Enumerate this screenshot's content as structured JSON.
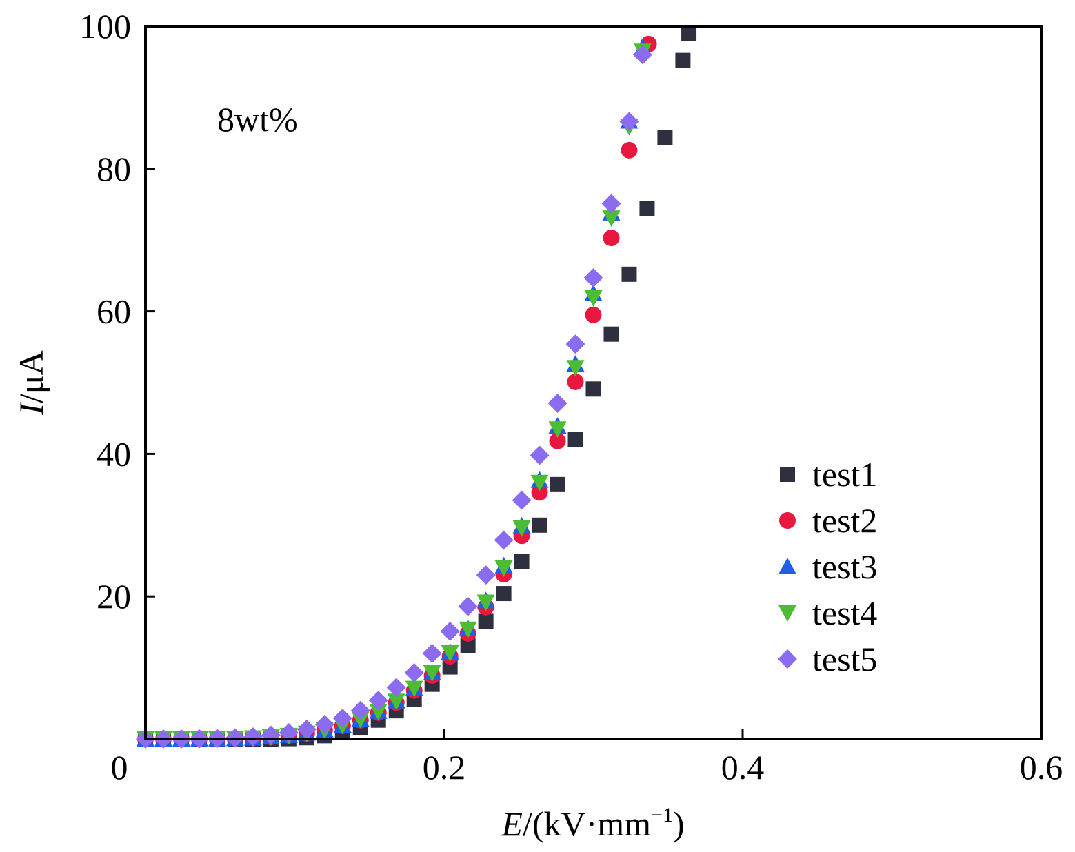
{
  "chart_data": {
    "type": "scatter",
    "title": "",
    "annotation": "8wt%",
    "xlabel": {
      "italic": "E",
      "rest": "/(kV·mm",
      "sup": "−1",
      "close": ")"
    },
    "ylabel": {
      "italic": "I",
      "rest": "/μA"
    },
    "xlim": [
      0,
      0.6
    ],
    "ylim": [
      0,
      100
    ],
    "xticks": [
      0,
      0.2,
      0.4,
      0.6
    ],
    "xtick_labels": [
      "0",
      "0.2",
      "0.4",
      "0.6"
    ],
    "yticks": [
      20,
      40,
      60,
      80,
      100
    ],
    "ytick_labels": [
      "20",
      "40",
      "60",
      "80",
      "100"
    ],
    "grid": false,
    "legend_position": "right-middle",
    "series": [
      {
        "name": "test1",
        "marker": "square",
        "color": "#2e2f3f",
        "x": [
          0,
          0.012,
          0.024,
          0.036,
          0.048,
          0.06,
          0.072,
          0.084,
          0.096,
          0.108,
          0.12,
          0.132,
          0.144,
          0.156,
          0.168,
          0.18,
          0.192,
          0.204,
          0.216,
          0.228,
          0.24,
          0.252,
          0.264,
          0.276,
          0.288,
          0.3,
          0.312,
          0.324,
          0.336,
          0.348,
          0.36,
          0.364
        ],
        "y": [
          0,
          0,
          0,
          0,
          0,
          0,
          0,
          0,
          0.04,
          0.17,
          0.45,
          0.93,
          1.64,
          2.64,
          3.95,
          5.61,
          7.67,
          10.1,
          13.1,
          16.5,
          20.4,
          24.9,
          30.0,
          35.7,
          42.0,
          49.1,
          56.8,
          65.2,
          74.4,
          84.4,
          95.2,
          99.0
        ]
      },
      {
        "name": "test2",
        "marker": "circle",
        "color": "#e8173f",
        "x": [
          0,
          0.012,
          0.024,
          0.036,
          0.048,
          0.06,
          0.072,
          0.084,
          0.096,
          0.108,
          0.12,
          0.132,
          0.144,
          0.156,
          0.168,
          0.18,
          0.192,
          0.204,
          0.216,
          0.228,
          0.24,
          0.252,
          0.264,
          0.276,
          0.288,
          0.3,
          0.312,
          0.324,
          0.337
        ],
        "y": [
          0,
          0,
          0,
          0.01,
          0.03,
          0.06,
          0.14,
          0.27,
          0.48,
          0.78,
          1.22,
          1.84,
          2.63,
          3.7,
          5.1,
          6.8,
          8.9,
          11.6,
          14.8,
          18.5,
          23.1,
          28.5,
          34.6,
          41.8,
          50.1,
          59.5,
          70.3,
          82.6,
          97.5
        ]
      },
      {
        "name": "test3",
        "marker": "triangle-up",
        "color": "#1f5ee8",
        "x": [
          0,
          0.012,
          0.024,
          0.036,
          0.048,
          0.06,
          0.072,
          0.084,
          0.096,
          0.108,
          0.12,
          0.132,
          0.144,
          0.156,
          0.168,
          0.18,
          0.192,
          0.204,
          0.216,
          0.228,
          0.24,
          0.252,
          0.264,
          0.276,
          0.288,
          0.3,
          0.312,
          0.324,
          0.333
        ],
        "y": [
          0,
          0,
          0,
          0.01,
          0.03,
          0.06,
          0.15,
          0.28,
          0.5,
          0.82,
          1.28,
          1.93,
          2.76,
          3.89,
          5.36,
          7.1,
          9.3,
          12.2,
          15.5,
          19.4,
          24.3,
          29.9,
          36.3,
          43.9,
          52.6,
          62.5,
          73.8,
          86.7,
          97.0
        ]
      },
      {
        "name": "test4",
        "marker": "triangle-down",
        "color": "#4cbd32",
        "x": [
          0,
          0.012,
          0.024,
          0.036,
          0.048,
          0.06,
          0.072,
          0.084,
          0.096,
          0.108,
          0.12,
          0.132,
          0.144,
          0.156,
          0.168,
          0.18,
          0.192,
          0.204,
          0.216,
          0.228,
          0.24,
          0.252,
          0.264,
          0.276,
          0.288,
          0.3,
          0.312,
          0.324,
          0.333
        ],
        "y": [
          0,
          0,
          0,
          0.01,
          0.03,
          0.06,
          0.15,
          0.28,
          0.5,
          0.81,
          1.27,
          1.91,
          2.74,
          3.85,
          5.3,
          7.1,
          9.3,
          12.1,
          15.4,
          19.2,
          24.0,
          29.6,
          36.0,
          43.5,
          52.1,
          61.9,
          73.1,
          85.9,
          96.5
        ]
      },
      {
        "name": "test5",
        "marker": "diamond",
        "color": "#8b6cf0",
        "x": [
          0,
          0.012,
          0.024,
          0.036,
          0.048,
          0.06,
          0.072,
          0.084,
          0.096,
          0.108,
          0.12,
          0.132,
          0.144,
          0.156,
          0.168,
          0.18,
          0.192,
          0.204,
          0.216,
          0.228,
          0.24,
          0.252,
          0.264,
          0.276,
          0.288,
          0.3,
          0.312,
          0.324,
          0.333
        ],
        "y": [
          0,
          0,
          0,
          0.02,
          0.06,
          0.15,
          0.29,
          0.53,
          0.87,
          1.36,
          2.03,
          2.9,
          4.0,
          5.4,
          7.2,
          9.3,
          12.0,
          15.1,
          18.6,
          23.0,
          27.9,
          33.5,
          39.8,
          47.1,
          55.4,
          64.7,
          75.1,
          86.6,
          96.0
        ]
      }
    ]
  }
}
